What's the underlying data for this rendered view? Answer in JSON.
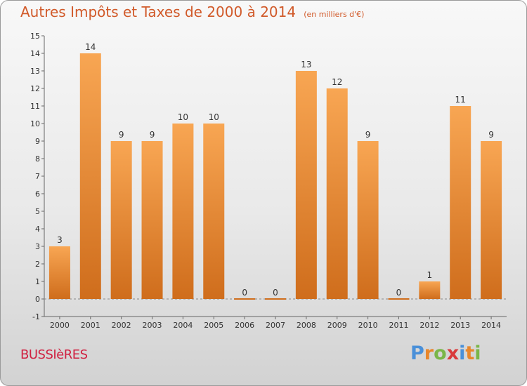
{
  "title": "Autres Impôts et Taxes de 2000 à 2014",
  "subtitle": "(en milliers d'€)",
  "commune": "BUSSIèRES",
  "logo": {
    "letters": [
      "P",
      "r",
      "o",
      "x",
      "i",
      "t",
      "i"
    ],
    "colors": [
      "#4a90d9",
      "#e8862a",
      "#7ab648",
      "#d93a3a",
      "#4a90d9",
      "#e8862a",
      "#7ab648"
    ]
  },
  "colors": {
    "bar_top": "#f8a653",
    "bar_bottom": "#cf6d1c",
    "title": "#d15a2a",
    "axis": "#666666",
    "grid": "#888888"
  },
  "chart_data": {
    "type": "bar",
    "categories": [
      "2000",
      "2001",
      "2002",
      "2003",
      "2004",
      "2005",
      "2006",
      "2007",
      "2008",
      "2009",
      "2010",
      "2011",
      "2012",
      "2013",
      "2014"
    ],
    "values": [
      3,
      14,
      9,
      9,
      10,
      10,
      0,
      0,
      13,
      12,
      9,
      0,
      1,
      11,
      9
    ],
    "title": "Autres Impôts et Taxes de 2000 à 2014",
    "subtitle": "(en milliers d'€)",
    "xlabel": "",
    "ylabel": "",
    "ylim": [
      -1,
      15
    ],
    "yticks": [
      -1,
      0,
      1,
      2,
      3,
      4,
      5,
      6,
      7,
      8,
      9,
      10,
      11,
      12,
      13,
      14,
      15
    ],
    "grid": false,
    "data_labels": [
      "3",
      "14",
      "9",
      "9",
      "10",
      "10",
      "0",
      "0",
      "13",
      "12",
      "9",
      "0",
      "1",
      "11",
      "9"
    ]
  }
}
